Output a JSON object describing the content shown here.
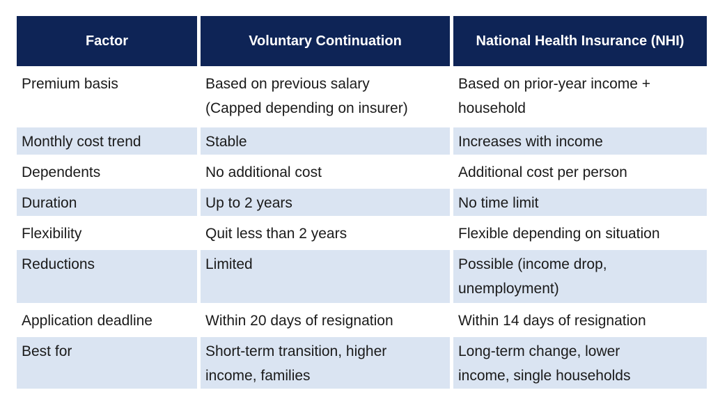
{
  "chart_data": {
    "type": "table",
    "title": "Voluntary Continuation vs National Health Insurance comparison table",
    "columns": [
      "Factor",
      "Voluntary Continuation",
      "National Health Insurance (NHI)"
    ],
    "rows": [
      [
        "Premium basis",
        "Based on previous salary\n(Capped depending on insurer)",
        "Based on prior-year income +\nhousehold"
      ],
      [
        "Monthly cost trend",
        "Stable",
        "Increases with income"
      ],
      [
        "Dependents",
        "No additional cost",
        "Additional cost per person"
      ],
      [
        "Duration",
        "Up to 2 years",
        "No time limit"
      ],
      [
        "Flexibility",
        "Quit less than 2 years",
        "Flexible depending on situation"
      ],
      [
        "Reductions",
        "Limited",
        "Possible  (income drop,\nunemployment)"
      ],
      [
        "Application deadline",
        "Within 20 days of resignation",
        "Within 14 days of resignation"
      ],
      [
        "Best for",
        "Short-term transition, higher\nincome, families",
        "Long-term change, lower\nincome, single households"
      ]
    ],
    "layout": {
      "grid": "off",
      "row_striping": "alternating, first body row white",
      "header_position": "top"
    },
    "colors": {
      "header_bg": "#0e2456",
      "header_text": "#ffffff",
      "row_shaded_bg": "#dae4f2",
      "row_plain_bg": "#ffffff",
      "body_text": "#1a1a1a"
    }
  }
}
